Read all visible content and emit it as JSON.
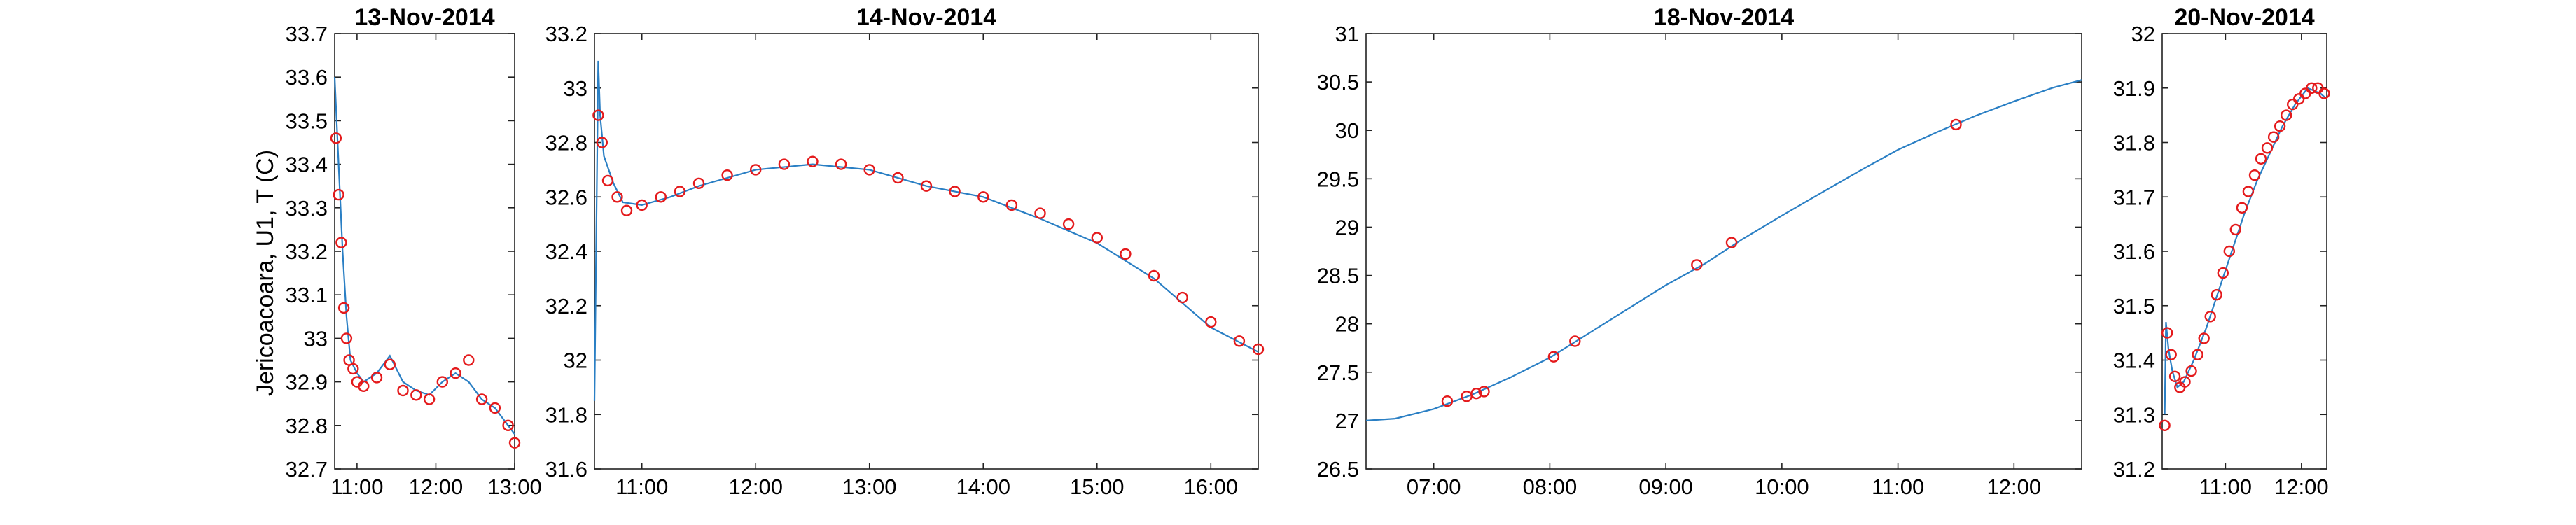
{
  "ylabel": "Jericoacoara, U1, T (C)",
  "colors": {
    "trace": "#2a7fc4",
    "marker": "#e41a1c",
    "axes": "#222222"
  },
  "chart_data": [
    {
      "type": "line",
      "title": "13-Nov-2014",
      "xlim": [
        "10:43",
        "13:00"
      ],
      "ylim": [
        32.7,
        33.7
      ],
      "xticks": [
        "11:00",
        "12:00",
        "13:00"
      ],
      "yticks": [
        "32.7",
        "32.8",
        "32.9",
        "33",
        "33.1",
        "33.2",
        "33.3",
        "33.4",
        "33.5",
        "33.6",
        "33.7"
      ],
      "series": [
        {
          "style": "line",
          "x": [
            "10:43",
            "10:46",
            "10:49",
            "10:52",
            "10:55",
            "11:00",
            "11:05",
            "11:15",
            "11:25",
            "11:35",
            "11:45",
            "11:55",
            "12:05",
            "12:15",
            "12:25",
            "12:35",
            "12:45",
            "12:55",
            "13:00"
          ],
          "y": [
            33.6,
            33.4,
            33.2,
            33.05,
            32.95,
            32.92,
            32.9,
            32.92,
            32.96,
            32.9,
            32.88,
            32.87,
            32.9,
            32.92,
            32.9,
            32.86,
            32.84,
            32.8,
            32.78
          ]
        },
        {
          "style": "markers",
          "x": [
            "10:44",
            "10:46",
            "10:48",
            "10:50",
            "10:52",
            "10:54",
            "10:57",
            "11:00",
            "11:05",
            "11:15",
            "11:25",
            "11:35",
            "11:45",
            "11:55",
            "12:05",
            "12:15",
            "12:25",
            "12:35",
            "12:45",
            "12:55",
            "13:00"
          ],
          "y": [
            33.46,
            33.33,
            33.22,
            33.07,
            33.0,
            32.95,
            32.93,
            32.9,
            32.89,
            32.91,
            32.94,
            32.88,
            32.87,
            32.86,
            32.9,
            32.92,
            32.95,
            32.86,
            32.84,
            32.8,
            32.76
          ]
        }
      ]
    },
    {
      "type": "line",
      "title": "14-Nov-2014",
      "xlim": [
        "10:35",
        "16:25"
      ],
      "ylim": [
        31.6,
        33.2
      ],
      "xticks": [
        "11:00",
        "12:00",
        "13:00",
        "14:00",
        "15:00",
        "16:00"
      ],
      "yticks": [
        "31.6",
        "31.8",
        "32",
        "32.2",
        "32.4",
        "32.6",
        "32.8",
        "33",
        "33.2"
      ],
      "series": [
        {
          "style": "line",
          "x": [
            "10:35",
            "10:37",
            "10:38",
            "10:40",
            "10:45",
            "10:50",
            "11:00",
            "11:15",
            "11:30",
            "12:00",
            "12:30",
            "13:00",
            "13:30",
            "14:00",
            "14:30",
            "15:00",
            "15:30",
            "16:00",
            "16:25"
          ],
          "y": [
            31.85,
            33.1,
            32.9,
            32.75,
            32.65,
            32.58,
            32.57,
            32.6,
            32.64,
            32.7,
            32.72,
            32.7,
            32.64,
            32.6,
            32.52,
            32.43,
            32.3,
            32.12,
            32.03
          ]
        },
        {
          "style": "markers",
          "x": [
            "10:37",
            "10:39",
            "10:42",
            "10:47",
            "10:52",
            "11:00",
            "11:10",
            "11:20",
            "11:30",
            "11:45",
            "12:00",
            "12:15",
            "12:30",
            "12:45",
            "13:00",
            "13:15",
            "13:30",
            "13:45",
            "14:00",
            "14:15",
            "14:30",
            "14:45",
            "15:00",
            "15:15",
            "15:30",
            "15:45",
            "16:00",
            "16:15",
            "16:25"
          ],
          "y": [
            32.9,
            32.8,
            32.66,
            32.6,
            32.55,
            32.57,
            32.6,
            32.62,
            32.65,
            32.68,
            32.7,
            32.72,
            32.73,
            32.72,
            32.7,
            32.67,
            32.64,
            32.62,
            32.6,
            32.57,
            32.54,
            32.5,
            32.45,
            32.39,
            32.31,
            32.23,
            32.14,
            32.07,
            32.04
          ]
        }
      ]
    },
    {
      "type": "line",
      "title": "18-Nov-2014",
      "xlim": [
        "06:25",
        "12:35"
      ],
      "ylim": [
        26.5,
        31
      ],
      "xticks": [
        "07:00",
        "08:00",
        "09:00",
        "10:00",
        "11:00",
        "12:00"
      ],
      "yticks": [
        "26.5",
        "27",
        "27.5",
        "28",
        "28.5",
        "29",
        "29.5",
        "30",
        "30.5",
        "31"
      ],
      "series": [
        {
          "style": "line",
          "x": [
            "06:25",
            "06:40",
            "07:00",
            "07:20",
            "07:40",
            "08:00",
            "08:20",
            "08:40",
            "09:00",
            "09:20",
            "09:40",
            "10:00",
            "10:20",
            "10:40",
            "11:00",
            "11:20",
            "11:40",
            "12:00",
            "12:20",
            "12:35"
          ],
          "y": [
            27.0,
            27.02,
            27.12,
            27.27,
            27.45,
            27.65,
            27.9,
            28.15,
            28.4,
            28.62,
            28.88,
            29.12,
            29.35,
            29.58,
            29.8,
            29.98,
            30.15,
            30.3,
            30.44,
            30.52
          ]
        },
        {
          "style": "markers",
          "x": [
            "07:07",
            "07:17",
            "07:22",
            "07:26",
            "08:02",
            "08:13",
            "09:16",
            "09:34",
            "11:30"
          ],
          "y": [
            27.2,
            27.25,
            27.28,
            27.3,
            27.66,
            27.82,
            28.61,
            28.84,
            30.06
          ]
        }
      ]
    },
    {
      "type": "line",
      "title": "20-Nov-2014",
      "xlim": [
        "10:10",
        "12:20"
      ],
      "ylim": [
        31.2,
        32
      ],
      "xticks": [
        "11:00",
        "12:00"
      ],
      "yticks": [
        "31.2",
        "31.3",
        "31.4",
        "31.5",
        "31.6",
        "31.7",
        "31.8",
        "31.9",
        "32"
      ],
      "series": [
        {
          "style": "line",
          "x": [
            "10:12",
            "10:13",
            "10:15",
            "10:18",
            "10:22",
            "10:27",
            "10:35",
            "10:45",
            "10:55",
            "11:05",
            "11:15",
            "11:25",
            "11:35",
            "11:45",
            "11:55",
            "12:05",
            "12:15",
            "12:20"
          ],
          "y": [
            31.3,
            31.47,
            31.42,
            31.38,
            31.35,
            31.36,
            31.4,
            31.46,
            31.53,
            31.6,
            31.67,
            31.73,
            31.78,
            31.83,
            31.87,
            31.9,
            31.89,
            31.88
          ]
        },
        {
          "style": "markers",
          "x": [
            "10:12",
            "10:14",
            "10:17",
            "10:20",
            "10:24",
            "10:28",
            "10:33",
            "10:38",
            "10:43",
            "10:48",
            "10:53",
            "10:58",
            "11:03",
            "11:08",
            "11:13",
            "11:18",
            "11:23",
            "11:28",
            "11:33",
            "11:38",
            "11:43",
            "11:48",
            "11:53",
            "11:58",
            "12:03",
            "12:08",
            "12:13",
            "12:18"
          ],
          "y": [
            31.28,
            31.45,
            31.41,
            31.37,
            31.35,
            31.36,
            31.38,
            31.41,
            31.44,
            31.48,
            31.52,
            31.56,
            31.6,
            31.64,
            31.68,
            31.71,
            31.74,
            31.77,
            31.79,
            31.81,
            31.83,
            31.85,
            31.87,
            31.88,
            31.89,
            31.9,
            31.9,
            31.89
          ]
        }
      ]
    }
  ]
}
